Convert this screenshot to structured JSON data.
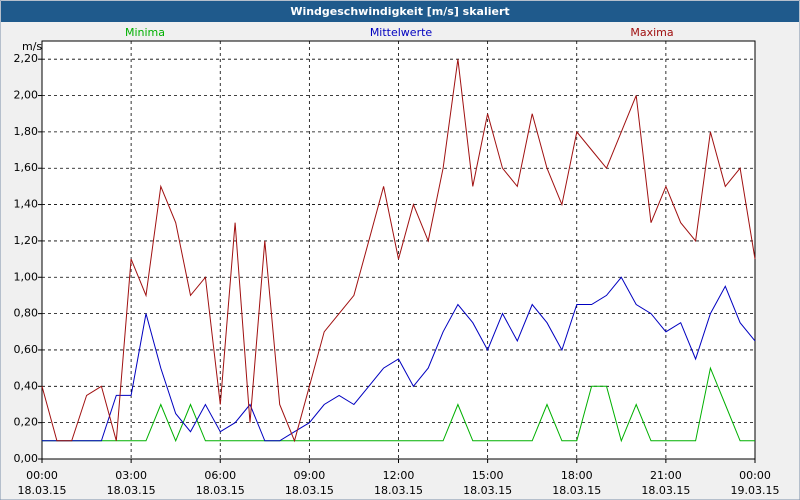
{
  "chart_data": {
    "type": "line",
    "title": "Windgeschwindigkeit [m/s] skaliert",
    "y_label": "m/s",
    "x": [
      0,
      0.5,
      1,
      1.5,
      2,
      2.5,
      3,
      3.5,
      4,
      4.5,
      5,
      5.5,
      6,
      6.5,
      7,
      7.5,
      8,
      8.5,
      9,
      9.5,
      10,
      10.5,
      11,
      11.5,
      12,
      12.5,
      13,
      13.5,
      14,
      14.5,
      15,
      15.5,
      16,
      16.5,
      17,
      17.5,
      18,
      18.5,
      19,
      19.5,
      20,
      20.5,
      21,
      21.5,
      22,
      22.5,
      23,
      23.5,
      24
    ],
    "series": [
      {
        "name": "Minima",
        "color": "#00b000",
        "values": [
          0.1,
          0.1,
          0.1,
          0.1,
          0.1,
          0.1,
          0.1,
          0.1,
          0.3,
          0.1,
          0.3,
          0.1,
          0.1,
          0.1,
          0.1,
          0.1,
          0.1,
          0.1,
          0.1,
          0.1,
          0.1,
          0.1,
          0.1,
          0.1,
          0.1,
          0.1,
          0.1,
          0.1,
          0.3,
          0.1,
          0.1,
          0.1,
          0.1,
          0.1,
          0.3,
          0.1,
          0.1,
          0.4,
          0.4,
          0.1,
          0.3,
          0.1,
          0.1,
          0.1,
          0.1,
          0.5,
          0.3,
          0.1,
          0.1
        ]
      },
      {
        "name": "Mittelwerte",
        "color": "#0000c0",
        "values": [
          0.1,
          0.1,
          0.1,
          0.1,
          0.1,
          0.35,
          0.35,
          0.8,
          0.5,
          0.25,
          0.15,
          0.3,
          0.15,
          0.2,
          0.3,
          0.1,
          0.1,
          0.15,
          0.2,
          0.3,
          0.35,
          0.3,
          0.4,
          0.5,
          0.55,
          0.4,
          0.5,
          0.7,
          0.85,
          0.75,
          0.6,
          0.8,
          0.65,
          0.85,
          0.75,
          0.6,
          0.85,
          0.85,
          0.9,
          1.0,
          0.85,
          0.8,
          0.7,
          0.75,
          0.55,
          0.8,
          0.95,
          0.75,
          0.65
        ]
      },
      {
        "name": "Maxima",
        "color": "#a01010",
        "values": [
          0.4,
          0.1,
          0.1,
          0.35,
          0.4,
          0.1,
          1.1,
          0.9,
          1.5,
          1.3,
          0.9,
          1.0,
          0.3,
          1.3,
          0.2,
          1.2,
          0.3,
          0.1,
          0.4,
          0.7,
          0.8,
          0.9,
          1.2,
          1.5,
          1.1,
          1.4,
          1.2,
          1.6,
          2.2,
          1.5,
          1.9,
          1.6,
          1.5,
          1.9,
          1.6,
          1.4,
          1.8,
          1.7,
          1.6,
          1.8,
          2.0,
          1.3,
          1.5,
          1.3,
          1.2,
          1.8,
          1.5,
          1.6,
          1.1
        ]
      }
    ],
    "xlim": [
      0,
      24
    ],
    "xticks": [
      {
        "value": 0,
        "label": "00:00 18.03.15"
      },
      {
        "value": 3,
        "label": "03:00 18.03.15"
      },
      {
        "value": 6,
        "label": "06:00 18.03.15"
      },
      {
        "value": 9,
        "label": "09:00 18.03.15"
      },
      {
        "value": 12,
        "label": "12:00 18.03.15"
      },
      {
        "value": 15,
        "label": "15:00 18.03.15"
      },
      {
        "value": 18,
        "label": "18:00 18.03.15"
      },
      {
        "value": 21,
        "label": "21:00 18.03.15"
      },
      {
        "value": 24,
        "label": "00:00 19.03.15"
      }
    ],
    "ylim": [
      0,
      2.3
    ],
    "yticks": [
      {
        "value": 0,
        "label": "0,00"
      },
      {
        "value": 0.2,
        "label": "0,20"
      },
      {
        "value": 0.4,
        "label": "0,40"
      },
      {
        "value": 0.6,
        "label": "0,60"
      },
      {
        "value": 0.8,
        "label": "0,80"
      },
      {
        "value": 1.0,
        "label": "1,00"
      },
      {
        "value": 1.2,
        "label": "1,20"
      },
      {
        "value": 1.4,
        "label": "1,40"
      },
      {
        "value": 1.6,
        "label": "1,60"
      },
      {
        "value": 1.8,
        "label": "1,80"
      },
      {
        "value": 2.0,
        "label": "2,00"
      },
      {
        "value": 2.2,
        "label": "2,20"
      }
    ],
    "grid": true
  }
}
